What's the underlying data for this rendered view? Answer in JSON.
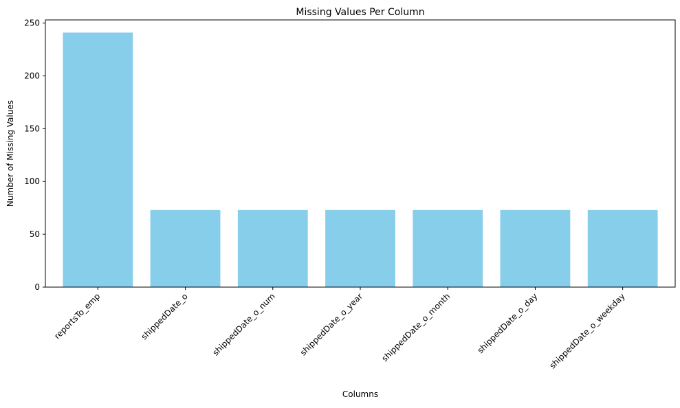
{
  "chart_data": {
    "type": "bar",
    "title": "Missing Values Per Column",
    "xlabel": "Columns",
    "ylabel": "Number of Missing Values",
    "categories": [
      "reportsTo_emp",
      "shippedDate_o",
      "shippedDate_o_num",
      "shippedDate_o_year",
      "shippedDate_o_month",
      "shippedDate_o_day",
      "shippedDate_o_weekday"
    ],
    "values": [
      241,
      73,
      73,
      73,
      73,
      73,
      73
    ],
    "ylim": [
      0,
      253
    ],
    "yticks": [
      0,
      50,
      100,
      150,
      200,
      250
    ],
    "bar_color": "#87ceeb",
    "grid": false,
    "legend": "none"
  }
}
